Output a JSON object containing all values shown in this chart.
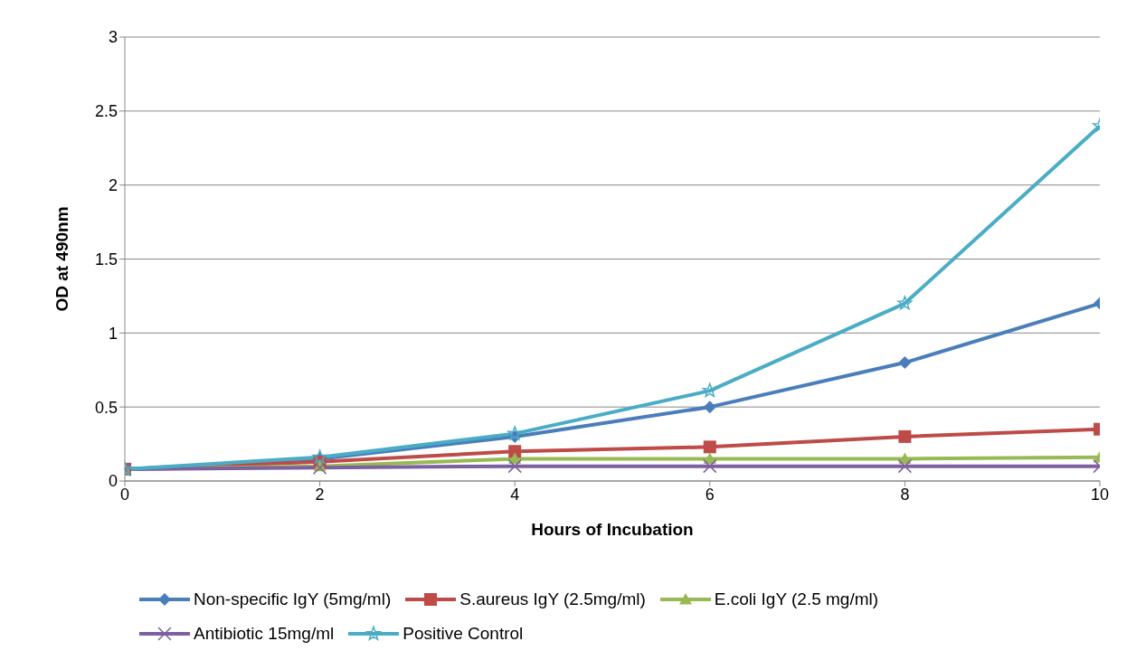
{
  "chart_data": {
    "type": "line",
    "xlabel": "Hours of Incubation",
    "ylabel": "OD at 490nm",
    "x": [
      0,
      2,
      4,
      6,
      8,
      10
    ],
    "xlim": [
      0,
      10
    ],
    "xticks": [
      0,
      2,
      4,
      6,
      8,
      10
    ],
    "ylim": [
      0,
      3
    ],
    "yticks": [
      0,
      0.5,
      1,
      1.5,
      2,
      2.5,
      3
    ],
    "grid": "y",
    "legend": "bottom",
    "series": [
      {
        "name": "Non-specific IgY (5mg/ml)",
        "color": "#4a7ebb",
        "marker": "diamond",
        "values": [
          0.08,
          0.15,
          0.3,
          0.5,
          0.8,
          1.2
        ]
      },
      {
        "name": "S.aureus IgY (2.5mg/ml)",
        "color": "#be4b48",
        "marker": "square",
        "values": [
          0.08,
          0.13,
          0.2,
          0.23,
          0.3,
          0.35
        ]
      },
      {
        "name": "E.coli IgY (2.5 mg/ml)",
        "color": "#98b954",
        "marker": "triangle",
        "values": [
          0.08,
          0.1,
          0.15,
          0.15,
          0.15,
          0.16
        ]
      },
      {
        "name": "Antibiotic 15mg/ml",
        "color": "#7d60a0",
        "marker": "cross",
        "values": [
          0.08,
          0.09,
          0.1,
          0.1,
          0.1,
          0.1
        ]
      },
      {
        "name": "Positive Control",
        "color": "#4bacc6",
        "marker": "star",
        "values": [
          0.08,
          0.16,
          0.32,
          0.61,
          1.2,
          2.4
        ]
      }
    ]
  }
}
